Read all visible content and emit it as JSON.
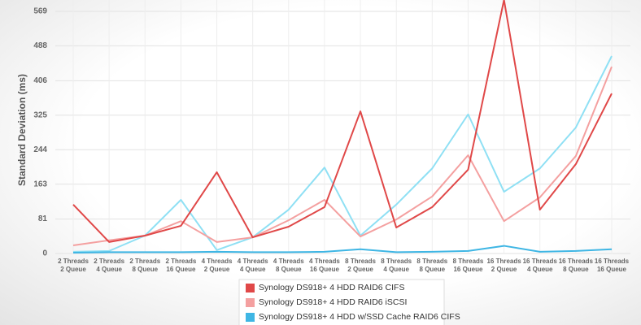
{
  "chart_data": {
    "type": "line",
    "y_label": "Standard Deviation (ms)",
    "categories": [
      [
        "2 Threads",
        "2 Queue"
      ],
      [
        "2 Threads",
        "4 Queue"
      ],
      [
        "2 Threads",
        "8 Queue"
      ],
      [
        "2 Threads",
        "16 Queue"
      ],
      [
        "4 Threads",
        "2 Queue"
      ],
      [
        "4 Threads",
        "4 Queue"
      ],
      [
        "4 Threads",
        "8 Queue"
      ],
      [
        "4 Threads",
        "16 Queue"
      ],
      [
        "8 Threads",
        "2 Queue"
      ],
      [
        "8 Threads",
        "4 Queue"
      ],
      [
        "8 Threads",
        "8 Queue"
      ],
      [
        "8 Threads",
        "16 Queue"
      ],
      [
        "16 Threads",
        "2 Queue"
      ],
      [
        "16 Threads",
        "4 Queue"
      ],
      [
        "16 Threads",
        "8 Queue"
      ],
      [
        "16 Threads",
        "16 Queue"
      ]
    ],
    "ylim": [
      0,
      569
    ],
    "yticks": [
      0,
      81,
      163,
      244,
      325,
      406,
      488,
      569
    ],
    "grid": true,
    "series": [
      {
        "name": "Synology DS918+ 4 HDD RAID6 CIFS",
        "color": "#e04848",
        "values": [
          115,
          27,
          42,
          65,
          191,
          38,
          63,
          109,
          334,
          61,
          109,
          197,
          596,
          103,
          210,
          376
        ]
      },
      {
        "name": "Synology DS918+ 4 HDD RAID6 iSCSI",
        "color": "#f4a0a0",
        "values": [
          19,
          31,
          42,
          76,
          27,
          38,
          78,
          126,
          40,
          80,
          134,
          231,
          76,
          132,
          229,
          439
        ]
      },
      {
        "name": "Synology DS918+ 4 HDD w/SSD Cache RAID6 CIFS",
        "color": "#3fb6e4",
        "values": [
          2,
          3,
          3,
          3,
          4,
          3,
          3,
          4,
          10,
          3,
          4,
          6,
          18,
          4,
          6,
          10
        ]
      },
      {
        "name": null,
        "color": "#8fe0f4",
        "values": [
          4,
          6,
          42,
          126,
          8,
          38,
          103,
          202,
          42,
          115,
          200,
          327,
          145,
          200,
          296,
          464
        ]
      }
    ]
  }
}
